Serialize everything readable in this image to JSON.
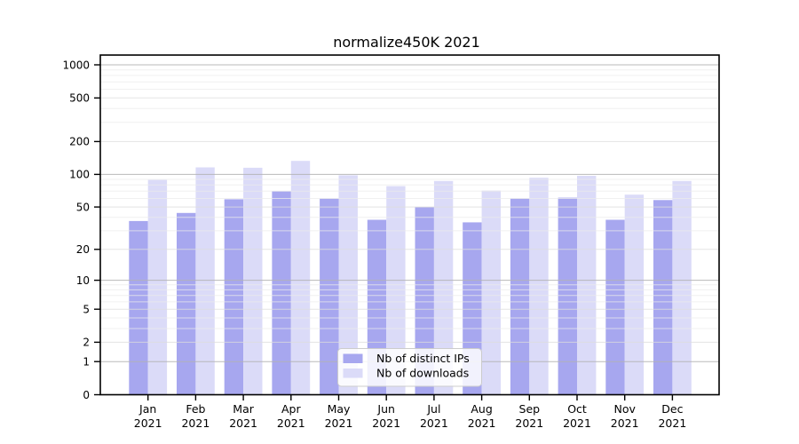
{
  "figure": {
    "title": "normalize450K 2021"
  },
  "chart_data": {
    "type": "bar",
    "title": "normalize450K 2021",
    "categories": [
      "Jan",
      "Feb",
      "Mar",
      "Apr",
      "May",
      "Jun",
      "Jul",
      "Aug",
      "Sep",
      "Oct",
      "Nov",
      "Dec"
    ],
    "year_label": "2021",
    "series": [
      {
        "name": "Nb of distinct IPs",
        "color": "#a7a7ef",
        "values": [
          37,
          44,
          59,
          70,
          60,
          38,
          50,
          36,
          60,
          61,
          38,
          58
        ]
      },
      {
        "name": "Nb of downloads",
        "color": "#dbdbf8",
        "values": [
          89,
          116,
          115,
          133,
          98,
          78,
          87,
          71,
          93,
          97,
          65,
          87
        ]
      }
    ],
    "xlabel": "",
    "ylabel": "",
    "yscale": "log10(1+y)",
    "yticks": [
      0,
      1,
      2,
      5,
      10,
      20,
      50,
      100,
      200,
      500,
      1000
    ],
    "ylim": [
      0,
      1230
    ],
    "grid": true,
    "legend_position": "inside-bottom-center",
    "colors": {
      "axis": "#000000",
      "grid_major": "#b3b3b3",
      "grid_mid": "#dddddd",
      "grid_minor": "#ebebeb",
      "legend_border": "#cccccc",
      "legend_bg": "#ffffff"
    }
  }
}
